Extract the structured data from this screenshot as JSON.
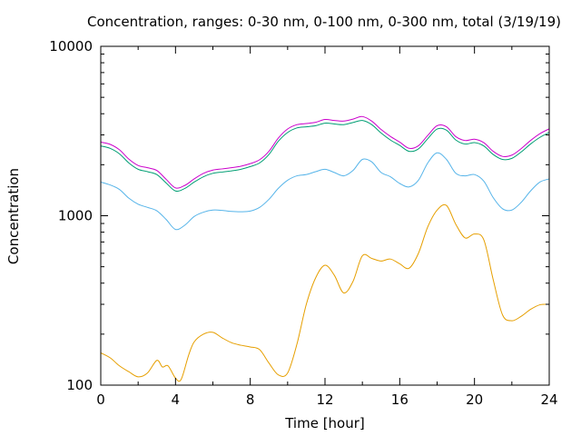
{
  "chart_data": {
    "type": "line",
    "title": "Concentration, ranges: 0-30 nm, 0-100 nm, 0-300 nm, total (3/19/19)",
    "xlabel": "Time [hour]",
    "ylabel": "Concentration",
    "xlim": [
      0,
      24
    ],
    "ylim": [
      100,
      10000
    ],
    "yscale": "log",
    "grid": false,
    "legend": "none",
    "xticks": [
      0,
      4,
      8,
      12,
      16,
      20,
      24
    ],
    "yticks": [
      100,
      1000,
      10000
    ],
    "series": [
      {
        "color": "#e69f00",
        "x": [
          0,
          0.5,
          1,
          1.5,
          2,
          2.5,
          3,
          3.3,
          3.6,
          4,
          4.3,
          4.7,
          5,
          5.5,
          6,
          6.5,
          7,
          7.5,
          8,
          8.5,
          9,
          9.5,
          10,
          10.5,
          11,
          11.5,
          12,
          12.5,
          13,
          13.5,
          14,
          14.5,
          15,
          15.5,
          16,
          16.5,
          17,
          17.5,
          18,
          18.5,
          19,
          19.5,
          20,
          20.5,
          21,
          21.5,
          22,
          22.5,
          23,
          23.5,
          24
        ],
        "y": [
          155,
          145,
          130,
          120,
          112,
          118,
          140,
          128,
          130,
          110,
          108,
          150,
          180,
          200,
          205,
          190,
          178,
          172,
          168,
          162,
          135,
          115,
          118,
          175,
          300,
          430,
          510,
          445,
          350,
          410,
          580,
          560,
          540,
          555,
          520,
          490,
          600,
          860,
          1080,
          1150,
          890,
          740,
          780,
          720,
          420,
          260,
          240,
          255,
          280,
          298,
          300
        ]
      },
      {
        "color": "#56b4e9",
        "x": [
          0,
          0.5,
          1,
          1.5,
          2,
          2.5,
          3,
          3.5,
          4,
          4.5,
          5,
          5.5,
          6,
          6.5,
          7,
          7.5,
          8,
          8.5,
          9,
          9.5,
          10,
          10.5,
          11,
          11.5,
          12,
          12.5,
          13,
          13.5,
          14,
          14.5,
          15,
          15.5,
          16,
          16.5,
          17,
          17.5,
          18,
          18.5,
          19,
          19.5,
          20,
          20.5,
          21,
          21.5,
          22,
          22.5,
          23,
          23.5,
          24
        ],
        "y": [
          1580,
          1520,
          1430,
          1270,
          1170,
          1120,
          1070,
          950,
          830,
          880,
          990,
          1050,
          1080,
          1075,
          1060,
          1055,
          1065,
          1120,
          1250,
          1450,
          1620,
          1720,
          1750,
          1820,
          1880,
          1800,
          1720,
          1850,
          2150,
          2080,
          1800,
          1700,
          1550,
          1480,
          1620,
          2050,
          2350,
          2150,
          1780,
          1720,
          1750,
          1600,
          1280,
          1100,
          1080,
          1200,
          1400,
          1580,
          1650
        ]
      },
      {
        "color": "#009e73",
        "x": [
          0,
          0.5,
          1,
          1.5,
          2,
          2.5,
          3,
          3.5,
          4,
          4.5,
          5,
          5.5,
          6,
          6.5,
          7,
          7.5,
          8,
          8.5,
          9,
          9.5,
          10,
          10.5,
          11,
          11.5,
          12,
          12.5,
          13,
          13.5,
          14,
          14.5,
          15,
          15.5,
          16,
          16.5,
          17,
          17.5,
          18,
          18.5,
          19,
          19.5,
          20,
          20.5,
          21,
          21.5,
          22,
          22.5,
          23,
          23.5,
          24
        ],
        "y": [
          2580,
          2500,
          2320,
          2050,
          1880,
          1820,
          1750,
          1560,
          1400,
          1450,
          1580,
          1700,
          1780,
          1810,
          1840,
          1880,
          1950,
          2050,
          2300,
          2750,
          3100,
          3300,
          3350,
          3400,
          3520,
          3480,
          3450,
          3550,
          3650,
          3450,
          3080,
          2800,
          2600,
          2400,
          2480,
          2850,
          3250,
          3200,
          2800,
          2650,
          2700,
          2580,
          2300,
          2150,
          2180,
          2380,
          2650,
          2900,
          3100
        ]
      },
      {
        "color": "#cc00cc",
        "x": [
          0,
          0.5,
          1,
          1.5,
          2,
          2.5,
          3,
          3.5,
          4,
          4.5,
          5,
          5.5,
          6,
          6.5,
          7,
          7.5,
          8,
          8.5,
          9,
          9.5,
          10,
          10.5,
          11,
          11.5,
          12,
          12.5,
          13,
          13.5,
          14,
          14.5,
          15,
          15.5,
          16,
          16.5,
          17,
          17.5,
          18,
          18.5,
          19,
          19.5,
          20,
          20.5,
          21,
          21.5,
          22,
          22.5,
          23,
          23.5,
          24
        ],
        "y": [
          2720,
          2640,
          2450,
          2160,
          1980,
          1920,
          1850,
          1640,
          1460,
          1510,
          1650,
          1780,
          1860,
          1890,
          1920,
          1960,
          2030,
          2140,
          2400,
          2870,
          3250,
          3450,
          3500,
          3560,
          3700,
          3650,
          3620,
          3720,
          3850,
          3620,
          3230,
          2940,
          2720,
          2500,
          2590,
          2980,
          3400,
          3350,
          2930,
          2780,
          2830,
          2700,
          2400,
          2240,
          2280,
          2490,
          2780,
          3050,
          3260
        ]
      }
    ]
  }
}
